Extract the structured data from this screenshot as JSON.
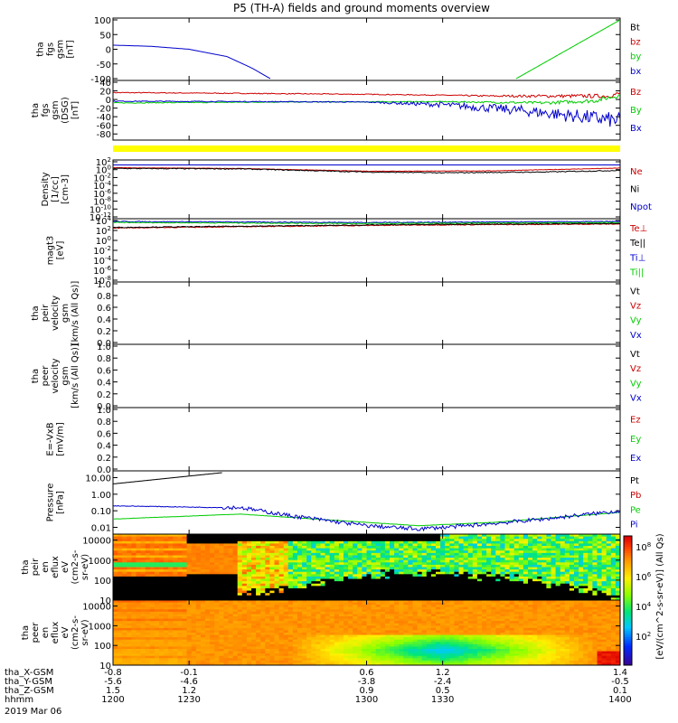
{
  "title": "P5 (TH-A) fields and ground moments overview",
  "colors": {
    "black": "#000000",
    "red": "#cc0000",
    "green": "#00cc00",
    "blue": "#0000cc",
    "yellow": "#ffff00"
  },
  "chart_data": [
    {
      "type": "line",
      "ylabel": [
        "tha",
        "fgs",
        "gsm",
        "[nT]"
      ],
      "ylim": [
        -100,
        100
      ],
      "yticks": [
        "100",
        "50",
        "0",
        "-50",
        "-100"
      ],
      "legend": [
        {
          "label": "Bt",
          "color": "black"
        },
        {
          "label": "bz",
          "color": "red"
        },
        {
          "label": "by",
          "color": "green"
        },
        {
          "label": "bx",
          "color": "blue"
        }
      ],
      "series": [
        {
          "name": "bx",
          "color": "blue",
          "x": [
            1200,
            1215,
            1230,
            1245,
            1255,
            1262
          ],
          "y": [
            14,
            10,
            0,
            -25,
            -65,
            -100
          ]
        },
        {
          "name": "by",
          "color": "green",
          "x": [
            1359,
            1400
          ],
          "y": [
            -100,
            100
          ]
        }
      ]
    },
    {
      "type": "line",
      "ylabel": [
        "tha",
        "fgs",
        "gsm",
        "(DSG)",
        "[nT]"
      ],
      "ylim": [
        -90,
        40
      ],
      "yticks": [
        "40",
        "20",
        "0",
        "-20",
        "-40",
        "-60",
        "-80"
      ],
      "legend": [
        {
          "label": "Bz",
          "color": "red"
        },
        {
          "label": "By",
          "color": "green"
        },
        {
          "label": "Bx",
          "color": "blue"
        }
      ],
      "series": [
        {
          "name": "Bz",
          "color": "red",
          "x": [
            1200,
            1230,
            1300,
            1330,
            1350,
            1395,
            1400
          ],
          "y": [
            16,
            15,
            12,
            10,
            8,
            8,
            14
          ]
        },
        {
          "name": "By",
          "color": "green",
          "x": [
            1200,
            1260,
            1330,
            1370,
            1390,
            1400
          ],
          "y": [
            -8,
            -6,
            -5,
            -8,
            -3,
            10
          ]
        },
        {
          "name": "Bx",
          "color": "blue",
          "x": [
            1200,
            1260,
            1300,
            1330,
            1360,
            1385,
            1400
          ],
          "y": [
            -4,
            -5,
            -6,
            -12,
            -25,
            -40,
            -50
          ]
        }
      ]
    },
    {
      "type": "line",
      "ylabel": [
        "Density",
        "[1/cc]",
        "[cm-3]"
      ],
      "ylog": true,
      "ylim": [
        -12,
        2
      ],
      "yticks": [
        "10^2",
        "10^0",
        "10^-2",
        "10^-4",
        "10^-6",
        "10^-8",
        "10^-10",
        "10^-12"
      ],
      "legend": [
        {
          "label": "Ne",
          "color": "red"
        },
        {
          "label": "Ni",
          "color": "black"
        },
        {
          "label": "Npot",
          "color": "blue"
        }
      ],
      "series": [
        {
          "name": "Npot",
          "color": "blue",
          "x": [
            1200,
            1400
          ],
          "y": [
            1.2,
            1.2
          ]
        },
        {
          "name": "Ne",
          "color": "red",
          "x": [
            1200,
            1250,
            1300,
            1350,
            1400
          ],
          "y": [
            0.5,
            0.3,
            -0.4,
            -0.3,
            0.4
          ]
        },
        {
          "name": "Ni",
          "color": "black",
          "x": [
            1200,
            1250,
            1300,
            1330,
            1370,
            1400
          ],
          "y": [
            0.3,
            0.2,
            -0.6,
            -0.8,
            -0.6,
            -0.2
          ]
        }
      ]
    },
    {
      "type": "line",
      "ylabel": [
        "magt3",
        "[eV]"
      ],
      "ylog": true,
      "ylim": [
        -8,
        4
      ],
      "yticks": [
        "10^4",
        "10^2",
        "10^0",
        "10^-2",
        "10^-4",
        "10^-6",
        "10^-8"
      ],
      "legend": [
        {
          "label": "Te⊥",
          "color": "red"
        },
        {
          "label": "Te||",
          "color": "black"
        },
        {
          "label": "Ti⊥",
          "color": "blue"
        },
        {
          "label": "Ti||",
          "color": "green"
        }
      ],
      "series": [
        {
          "name": "Ti⊥",
          "color": "blue",
          "x": [
            1200,
            1300,
            1400
          ],
          "y": [
            3.8,
            3.6,
            3.8
          ]
        },
        {
          "name": "Ti||",
          "color": "green",
          "x": [
            1200,
            1300,
            1400
          ],
          "y": [
            3.6,
            3.4,
            3.6
          ]
        },
        {
          "name": "Te⊥",
          "color": "red",
          "x": [
            1200,
            1260,
            1320,
            1400
          ],
          "y": [
            2.5,
            2.8,
            3.1,
            3.3
          ]
        },
        {
          "name": "Te||",
          "color": "black",
          "x": [
            1200,
            1260,
            1320,
            1400
          ],
          "y": [
            2.6,
            2.9,
            3.2,
            3.4
          ]
        }
      ]
    },
    {
      "type": "line",
      "ylabel": [
        "tha",
        "peir",
        "velocity",
        "gsm",
        "[km/s (All Qs)]"
      ],
      "ylim": [
        0,
        1
      ],
      "yticks": [
        "1.0",
        "0.8",
        "0.6",
        "0.4",
        "0.2",
        "0.0"
      ],
      "legend": [
        {
          "label": "Vt",
          "color": "black"
        },
        {
          "label": "Vz",
          "color": "red"
        },
        {
          "label": "Vy",
          "color": "green"
        },
        {
          "label": "Vx",
          "color": "blue"
        }
      ],
      "series": []
    },
    {
      "type": "line",
      "ylabel": [
        "tha",
        "peer",
        "velocity",
        "gsm",
        "[km/s (All Qs)]"
      ],
      "ylim": [
        0,
        1
      ],
      "yticks": [
        "1.0",
        "0.8",
        "0.6",
        "0.4",
        "0.2",
        "0.0"
      ],
      "legend": [
        {
          "label": "Vt",
          "color": "black"
        },
        {
          "label": "Vz",
          "color": "red"
        },
        {
          "label": "Vy",
          "color": "green"
        },
        {
          "label": "Vx",
          "color": "blue"
        }
      ],
      "series": []
    },
    {
      "type": "line",
      "ylabel": [
        "E=-VxB",
        "[mV/m]"
      ],
      "ylim": [
        0,
        1
      ],
      "yticks": [
        "1.0",
        "0.8",
        "0.6",
        "0.4",
        "0.2",
        "0.0"
      ],
      "legend": [
        {
          "label": "Ez",
          "color": "red"
        },
        {
          "label": "Ey",
          "color": "green"
        },
        {
          "label": "Ex",
          "color": "blue"
        }
      ],
      "series": []
    },
    {
      "type": "line",
      "ylabel": [
        "Pressure",
        "[nPa]"
      ],
      "ylog": true,
      "ylim": [
        -2.3,
        1.3
      ],
      "yticks": [
        "10.00",
        "1.00",
        "0.10",
        "0.01"
      ],
      "yticks_values": [
        1,
        0,
        -1,
        -2
      ],
      "legend": [
        {
          "label": "Pt",
          "color": "black"
        },
        {
          "label": "Pb",
          "color": "red"
        },
        {
          "label": "Pe",
          "color": "green"
        },
        {
          "label": "Pi",
          "color": "blue"
        }
      ],
      "series": [
        {
          "name": "Pt",
          "color": "black",
          "x": [
            1200,
            1243
          ],
          "y": [
            0.62,
            1.3
          ]
        },
        {
          "name": "Pe",
          "color": "green",
          "x": [
            1200,
            1250,
            1300,
            1320,
            1350,
            1400
          ],
          "y": [
            -1.5,
            -1.2,
            -1.7,
            -1.9,
            -1.7,
            -1.1
          ]
        },
        {
          "name": "Pi",
          "color": "blue",
          "x": [
            1200,
            1240,
            1250,
            1270,
            1300,
            1320,
            1340,
            1370,
            1400
          ],
          "y": [
            -0.7,
            -0.8,
            -0.8,
            -1.3,
            -1.9,
            -2.1,
            -1.9,
            -1.5,
            -1.0
          ]
        }
      ]
    },
    {
      "type": "heatmap",
      "ylabel": [
        "tha",
        "peir",
        "en",
        "eflux",
        "eV",
        "(cm2-s-",
        "sr-eV)"
      ],
      "ylog": true,
      "ylim": [
        10,
        20000
      ],
      "yticks": [
        "10000",
        "1000",
        "100",
        "10"
      ]
    },
    {
      "type": "heatmap",
      "ylabel": [
        "tha",
        "peer",
        "en",
        "eflux",
        "eV",
        "(cm2-s-",
        "sr-eV)"
      ],
      "ylog": true,
      "ylim": [
        10,
        20000
      ],
      "yticks": [
        "10000",
        "1000",
        "100",
        "10"
      ]
    }
  ],
  "colorbar": {
    "ticks": [
      "10^8",
      "10^6",
      "10^4",
      "10^2"
    ],
    "label": "[eV/(cm^2-s-sr-eV)] (All Qs)"
  },
  "xaxis": {
    "rows": [
      {
        "label": "tha_X-GSM",
        "values": [
          "-0.8",
          "-0.1",
          "0.6",
          "1.2",
          "1.4"
        ]
      },
      {
        "label": "tha_Y-GSM",
        "values": [
          "-5.6",
          "-4.6",
          "-3.8",
          "-2.4",
          "-0.5"
        ]
      },
      {
        "label": "tha_Z-GSM",
        "values": [
          "1.5",
          "1.2",
          "0.9",
          "0.5",
          "0.1"
        ]
      },
      {
        "label": "hhmm",
        "values": [
          "1200",
          "1230",
          "1300",
          "1330",
          "1400"
        ]
      }
    ],
    "date": "2019 Mar 06",
    "range": [
      1200,
      1400
    ]
  }
}
